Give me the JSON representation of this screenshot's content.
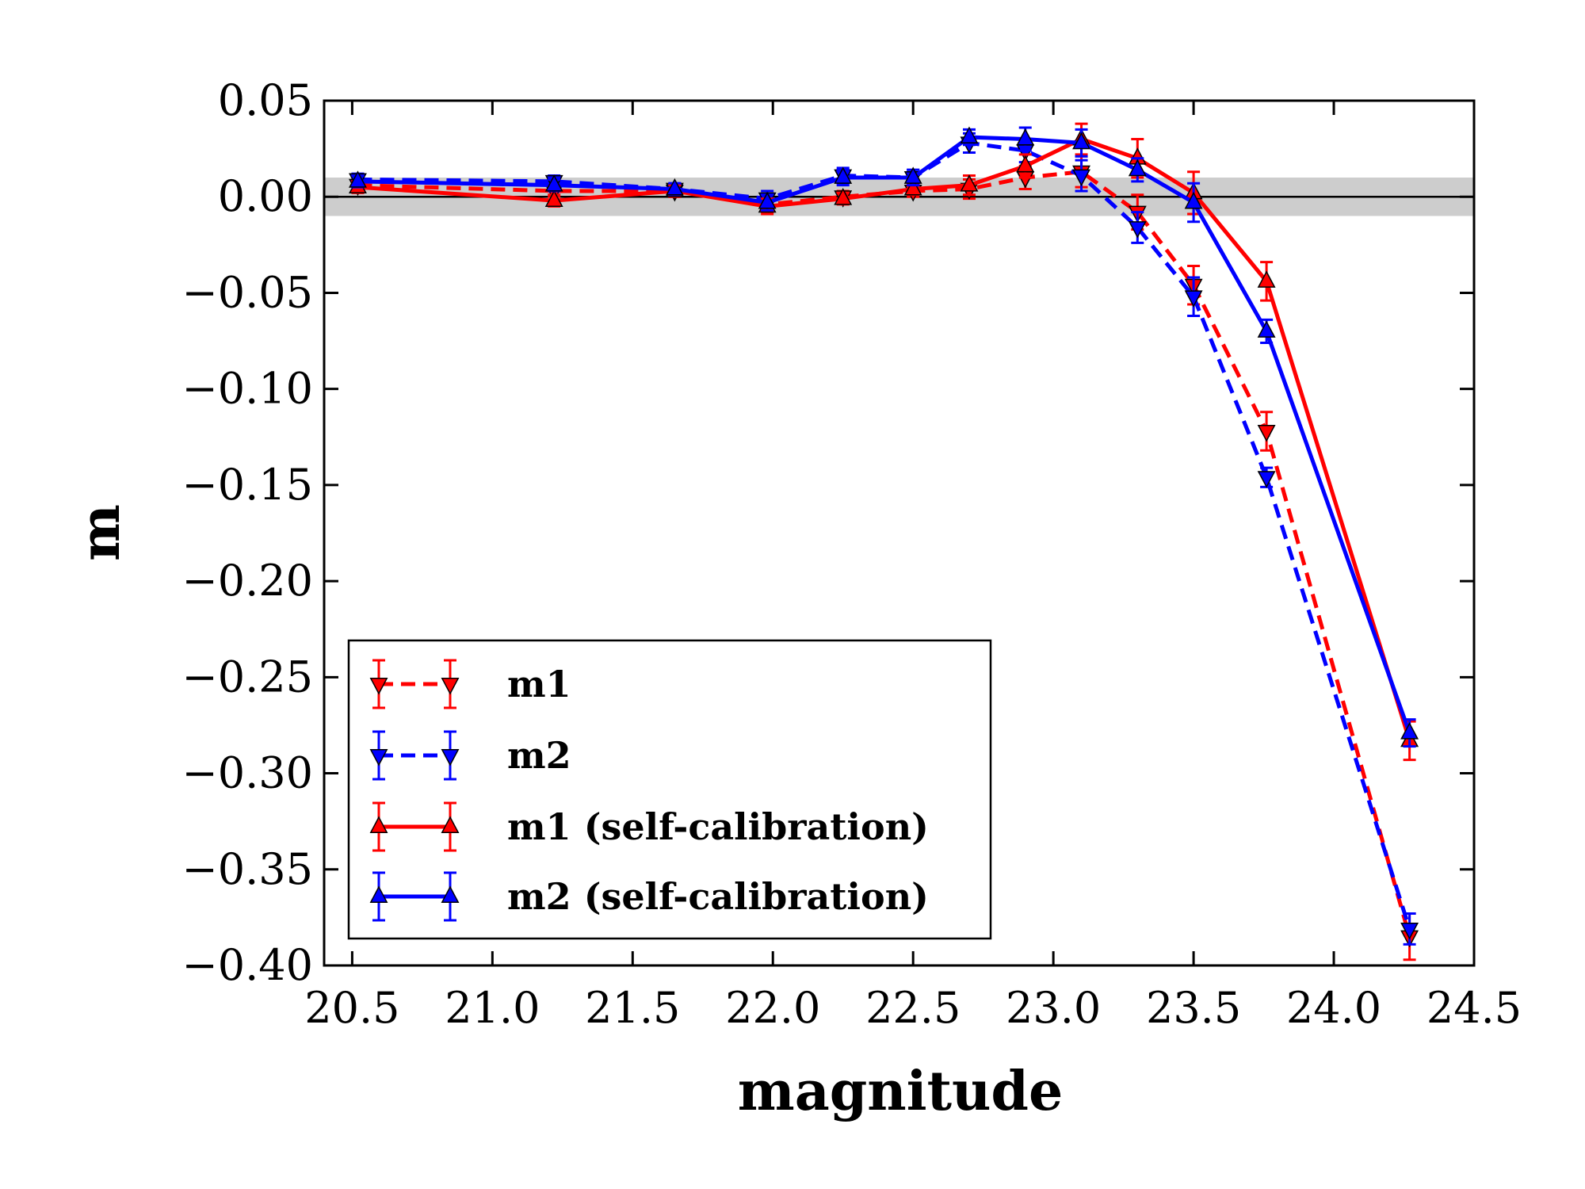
{
  "chart_data": {
    "type": "line",
    "title": "",
    "xlabel": "magnitude",
    "ylabel": "m",
    "xlim": [
      20.4,
      24.5
    ],
    "ylim": [
      -0.4,
      0.05
    ],
    "xticks": [
      "20.5",
      "21.0",
      "21.5",
      "22.0",
      "22.5",
      "23.0",
      "23.5",
      "24.0",
      "24.5"
    ],
    "yticks": [
      "0.05",
      "0.00",
      "−0.05",
      "−0.10",
      "−0.15",
      "−0.20",
      "−0.25",
      "−0.30",
      "−0.35",
      "−0.40"
    ],
    "reference_band": [
      -0.01,
      0.01
    ],
    "reference_line": 0.0,
    "legend_position": "lower-left",
    "x": [
      20.52,
      21.22,
      21.65,
      21.98,
      22.25,
      22.5,
      22.7,
      22.9,
      23.1,
      23.3,
      23.5,
      23.76,
      24.27
    ],
    "series": [
      {
        "name": "m1",
        "color": "#ff0000",
        "linestyle": "dashed",
        "marker": "triangle-down",
        "values": [
          0.006,
          0.003,
          0.003,
          -0.004,
          0.0,
          0.003,
          0.004,
          0.01,
          0.013,
          -0.008,
          -0.046,
          -0.122,
          -0.385
        ],
        "errors": [
          0.003,
          0.003,
          0.003,
          0.004,
          0.003,
          0.003,
          0.005,
          0.006,
          0.008,
          0.009,
          0.01,
          0.01,
          0.012
        ]
      },
      {
        "name": "m2",
        "color": "#0000ff",
        "linestyle": "dashed",
        "marker": "triangle-down",
        "values": [
          0.009,
          0.008,
          0.004,
          -0.001,
          0.011,
          0.01,
          0.028,
          0.024,
          0.011,
          -0.016,
          -0.052,
          -0.146,
          -0.381
        ],
        "errors": [
          0.003,
          0.003,
          0.003,
          0.004,
          0.004,
          0.004,
          0.005,
          0.006,
          0.008,
          0.008,
          0.01,
          0.005,
          0.008
        ]
      },
      {
        "name": "m1 (self-calibration)",
        "color": "#ff0000",
        "linestyle": "solid",
        "marker": "triangle-up",
        "values": [
          0.005,
          -0.002,
          0.003,
          -0.005,
          -0.001,
          0.004,
          0.006,
          0.016,
          0.03,
          0.02,
          0.002,
          -0.044,
          -0.283
        ],
        "errors": [
          0.003,
          0.003,
          0.003,
          0.004,
          0.003,
          0.003,
          0.005,
          0.006,
          0.008,
          0.01,
          0.011,
          0.01,
          0.01
        ]
      },
      {
        "name": "m2 (self-calibration)",
        "color": "#0000ff",
        "linestyle": "solid",
        "marker": "triangle-up",
        "values": [
          0.008,
          0.006,
          0.004,
          -0.003,
          0.01,
          0.01,
          0.031,
          0.03,
          0.028,
          0.014,
          -0.003,
          -0.07,
          -0.279
        ],
        "errors": [
          0.003,
          0.003,
          0.003,
          0.004,
          0.004,
          0.004,
          0.004,
          0.006,
          0.007,
          0.006,
          0.01,
          0.006,
          0.007
        ]
      }
    ]
  }
}
